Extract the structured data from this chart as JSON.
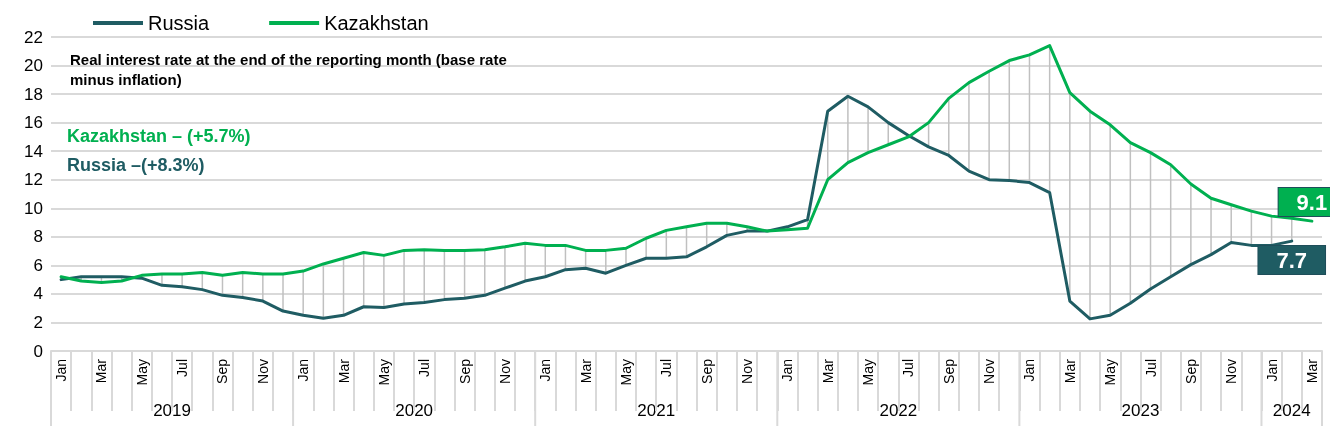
{
  "chart_data": {
    "type": "line",
    "title": "Real interest rate at the end of the reporting month (base rate minus inflation)",
    "categories": [
      "Jan",
      null,
      "Mar",
      null,
      "May",
      null,
      "Jul",
      null,
      "Sep",
      null,
      "Nov",
      null,
      "Jan",
      null,
      "Mar",
      null,
      "May",
      null,
      "Jul",
      null,
      "Sep",
      null,
      "Nov",
      null,
      "Jan",
      null,
      "Mar",
      null,
      "May",
      null,
      "Jul",
      null,
      "Sep",
      null,
      "Nov",
      null,
      "Jan",
      null,
      "Mar",
      null,
      "May",
      null,
      "Jul",
      null,
      "Sep",
      null,
      "Nov",
      null,
      "Jan",
      null,
      "Mar",
      null,
      "May",
      null,
      "Jul",
      null,
      "Sep",
      null,
      "Nov",
      null,
      "Jan",
      null,
      "Mar"
    ],
    "series": [
      {
        "name": "Russia",
        "color": "#1f5c63",
        "values": [
          5.0,
          5.2,
          5.2,
          5.2,
          5.1,
          4.6,
          4.5,
          4.3,
          3.9,
          3.75,
          3.5,
          2.8,
          2.5,
          2.3,
          2.5,
          3.1,
          3.05,
          3.3,
          3.4,
          3.6,
          3.7,
          3.9,
          4.4,
          4.9,
          5.2,
          5.7,
          5.8,
          5.45,
          6.0,
          6.5,
          6.5,
          6.6,
          7.3,
          8.1,
          8.4,
          8.4,
          8.7,
          9.2,
          16.8,
          17.85,
          17.1,
          16.0,
          15.1,
          14.3,
          13.7,
          12.6,
          12.0,
          11.95,
          11.8,
          11.1,
          3.5,
          2.25,
          2.5,
          3.35,
          4.35,
          5.2,
          6.05,
          6.75,
          7.6,
          7.4,
          7.4,
          7.7,
          null
        ],
        "value_labels": [
          null,
          null,
          null,
          null,
          null,
          null,
          null,
          null,
          null,
          null,
          null,
          null,
          null,
          null,
          null,
          null,
          null,
          null,
          null,
          null,
          null,
          null,
          null,
          null,
          null,
          null,
          null,
          null,
          null,
          null,
          null,
          null,
          null,
          null,
          null,
          null,
          null,
          null,
          null,
          null,
          null,
          null,
          null,
          null,
          null,
          null,
          null,
          null,
          null,
          null,
          null,
          null,
          null,
          null,
          null,
          null,
          null,
          null,
          null,
          null,
          null,
          "7.7",
          null
        ]
      },
      {
        "name": "Kazakhstan",
        "color": "#00b050",
        "values": [
          5.2,
          4.9,
          4.8,
          4.9,
          5.3,
          5.4,
          5.4,
          5.5,
          5.3,
          5.5,
          5.4,
          5.4,
          5.6,
          6.1,
          6.5,
          6.9,
          6.7,
          7.05,
          7.1,
          7.05,
          7.05,
          7.1,
          7.3,
          7.55,
          7.4,
          7.4,
          7.05,
          7.05,
          7.2,
          7.9,
          8.45,
          8.7,
          8.95,
          8.95,
          8.7,
          8.4,
          8.5,
          8.6,
          12.0,
          13.2,
          13.9,
          14.45,
          15.0,
          16.0,
          17.7,
          18.8,
          19.6,
          20.35,
          20.75,
          21.4,
          18.1,
          16.8,
          15.85,
          14.6,
          13.9,
          13.05,
          11.7,
          10.7,
          10.25,
          9.8,
          9.45,
          9.3,
          9.1
        ],
        "value_labels": [
          null,
          null,
          null,
          null,
          null,
          null,
          null,
          null,
          null,
          null,
          null,
          null,
          null,
          null,
          null,
          null,
          null,
          null,
          null,
          null,
          null,
          null,
          null,
          null,
          null,
          null,
          null,
          null,
          null,
          null,
          null,
          null,
          null,
          null,
          null,
          null,
          null,
          null,
          null,
          null,
          null,
          null,
          null,
          null,
          null,
          null,
          null,
          null,
          null,
          null,
          null,
          null,
          null,
          null,
          null,
          null,
          null,
          null,
          null,
          null,
          null,
          null,
          "9.1"
        ],
        "errors": [
          [
            5.0,
            5.2
          ],
          [
            4.9,
            5.2
          ],
          [
            4.8,
            5.2
          ],
          [
            4.9,
            5.2
          ],
          [
            5.1,
            5.3
          ],
          [
            4.6,
            5.4
          ],
          [
            4.5,
            5.4
          ],
          [
            4.3,
            5.5
          ],
          [
            3.9,
            5.3
          ],
          [
            3.75,
            5.5
          ],
          [
            3.5,
            5.4
          ],
          [
            2.8,
            5.4
          ],
          [
            2.5,
            5.6
          ],
          [
            2.3,
            6.1
          ],
          [
            2.5,
            6.5
          ],
          [
            3.1,
            6.9
          ],
          [
            3.05,
            6.7
          ],
          [
            3.3,
            7.05
          ],
          [
            3.4,
            7.1
          ],
          [
            3.6,
            7.05
          ],
          [
            3.7,
            7.05
          ],
          [
            3.9,
            7.1
          ],
          [
            4.4,
            7.3
          ],
          [
            4.9,
            7.55
          ],
          [
            5.2,
            7.4
          ],
          [
            5.7,
            7.4
          ],
          [
            5.8,
            7.05
          ],
          [
            5.45,
            7.05
          ],
          [
            6.0,
            7.2
          ],
          [
            6.5,
            7.9
          ],
          [
            6.5,
            8.45
          ],
          [
            6.6,
            8.7
          ],
          [
            7.3,
            8.95
          ],
          [
            8.1,
            8.95
          ],
          [
            8.4,
            8.7
          ],
          null,
          [
            8.5,
            8.7
          ],
          [
            8.6,
            9.2
          ],
          [
            12.0,
            16.8
          ],
          [
            13.2,
            17.85
          ],
          [
            13.9,
            17.1
          ],
          [
            14.45,
            16.0
          ],
          null,
          [
            14.3,
            16.0
          ],
          [
            13.7,
            17.7
          ],
          [
            12.6,
            18.8
          ],
          [
            12.0,
            19.6
          ],
          [
            11.95,
            20.35
          ],
          [
            11.8,
            20.75
          ],
          [
            11.1,
            21.4
          ],
          [
            3.5,
            18.1
          ],
          [
            2.25,
            16.8
          ],
          [
            2.5,
            15.85
          ],
          [
            3.35,
            14.6
          ],
          [
            4.35,
            13.9
          ],
          [
            5.2,
            13.05
          ],
          [
            6.05,
            11.7
          ],
          [
            6.75,
            10.7
          ],
          [
            7.6,
            10.25
          ],
          [
            7.4,
            9.8
          ],
          [
            7.4,
            9.45
          ],
          [
            7.7,
            9.3
          ],
          null
        ]
      }
    ],
    "ylim": [
      0,
      22
    ],
    "yticks": [
      0,
      2,
      4,
      6,
      8,
      10,
      12,
      14,
      16,
      18,
      20,
      22
    ],
    "grid": "y",
    "legend": "top left",
    "line_style": "solid",
    "annotations": [
      "Kazakhstan – (+5.7%)",
      "Russia –(+8.3%)",
      "2019",
      "2020",
      "2021",
      "2022",
      "2023",
      "2024"
    ]
  }
}
